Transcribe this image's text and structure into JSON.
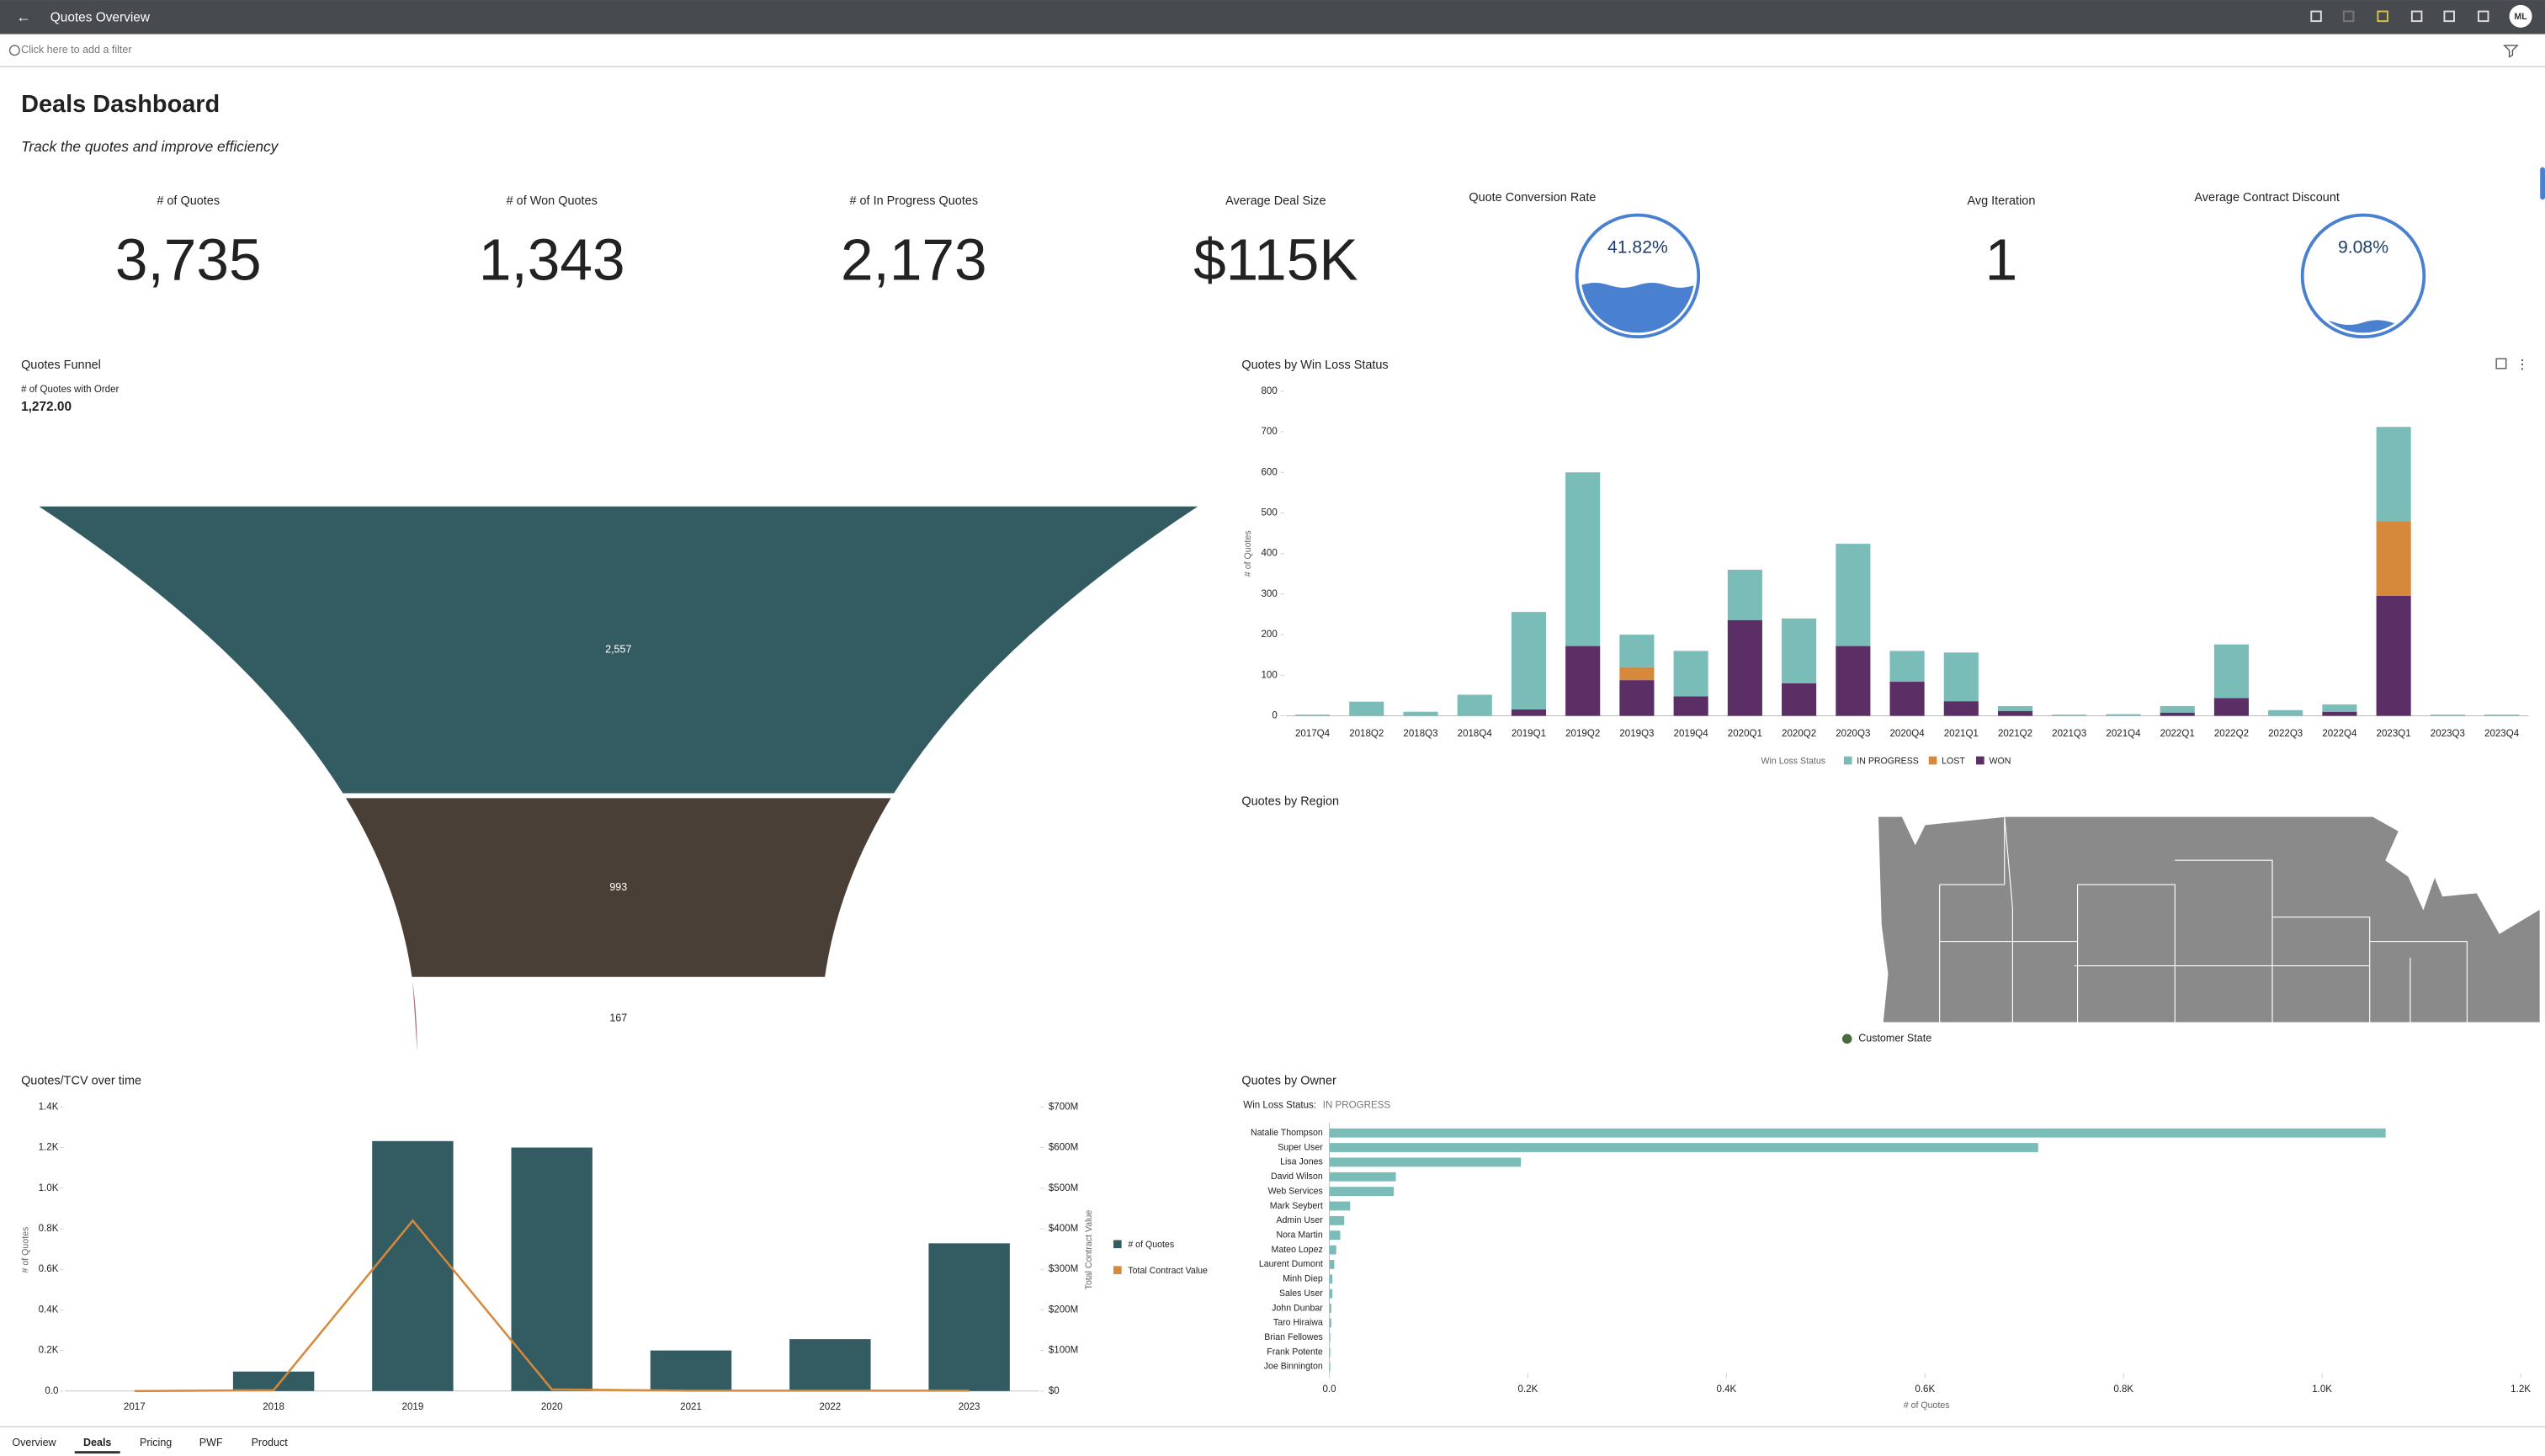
{
  "topbar": {
    "title": "Quotes Overview",
    "avatar": "ML"
  },
  "filter_bar": {
    "placeholder": "Click here to add a filter"
  },
  "dashboard": {
    "title": "Deals Dashboard",
    "subtitle": "Track the quotes and improve efficiency"
  },
  "kpis": [
    {
      "label": "# of Quotes",
      "value": "3,735"
    },
    {
      "label": "# of Won Quotes",
      "value": "1,343"
    },
    {
      "label": "# of In Progress Quotes",
      "value": "2,173"
    },
    {
      "label": "Average Deal Size",
      "value": "$115K"
    },
    {
      "label": "Avg Iteration",
      "value": "1"
    }
  ],
  "gauges": [
    {
      "label": "Quote Conversion Rate",
      "value": 41.82,
      "value_label": "41.82%",
      "color": "#4a80d0"
    },
    {
      "label": "Average Contract Discount",
      "value": 9.08,
      "value_label": "9.08%",
      "color": "#4a80d0"
    }
  ],
  "funnel": {
    "title": "Quotes Funnel",
    "measure_label": "# of Quotes with Order",
    "measure_value": "1,272.00",
    "values": [
      2557,
      993,
      167
    ],
    "value_labels": [
      "2,557",
      "993",
      "167"
    ],
    "colors": [
      "#335c62",
      "#4a3f37",
      "#a8707a"
    ]
  },
  "win_loss": {
    "type": "bar",
    "title": "Quotes by Win Loss Status",
    "y_label": "# of Quotes",
    "legend_title": "Win Loss Status",
    "categories": [
      "2017Q4",
      "2018Q2",
      "2018Q3",
      "2018Q4",
      "2019Q1",
      "2019Q2",
      "2019Q3",
      "2019Q4",
      "2020Q1",
      "2020Q2",
      "2020Q3",
      "2020Q4",
      "2021Q1",
      "2021Q2",
      "2021Q3",
      "2021Q4",
      "2022Q1",
      "2022Q2",
      "2022Q3",
      "2022Q4",
      "2023Q1",
      "2023Q3",
      "2023Q4"
    ],
    "series": [
      {
        "name": "WON",
        "color": "#5b2f66",
        "values": [
          0,
          0,
          0,
          0,
          16,
          172,
          88,
          48,
          236,
          80,
          172,
          84,
          36,
          12,
          0,
          0,
          8,
          44,
          0,
          10,
          296,
          0,
          0
        ]
      },
      {
        "name": "LOST",
        "color": "#d6893a",
        "values": [
          0,
          0,
          0,
          0,
          0,
          0,
          32,
          0,
          0,
          0,
          0,
          0,
          0,
          0,
          0,
          0,
          0,
          0,
          0,
          0,
          184,
          0,
          0
        ]
      },
      {
        "name": "IN PROGRESS",
        "color": "#79bcb8",
        "values": [
          3,
          35,
          10,
          52,
          240,
          428,
          80,
          112,
          124,
          160,
          252,
          76,
          120,
          12,
          3,
          4,
          16,
          132,
          14,
          18,
          232,
          3,
          3
        ]
      }
    ],
    "ylim": [
      0,
      800
    ],
    "yticks": [
      0,
      100,
      200,
      300,
      400,
      500,
      600,
      700,
      800
    ]
  },
  "region": {
    "title": "Quotes by Region",
    "legend": "Customer State"
  },
  "tcv": {
    "type": "combo",
    "title": "Quotes/TCV over time",
    "y_label": "# of Quotes",
    "y2_label": "Total Contract Value",
    "categories": [
      "2017",
      "2018",
      "2019",
      "2020",
      "2021",
      "2022",
      "2023"
    ],
    "series": [
      {
        "name": "# of Quotes",
        "type": "bar",
        "color": "#335c62",
        "values": [
          0,
          96,
          1232,
          1200,
          200,
          256,
          728
        ]
      },
      {
        "name": "Total Contract Value",
        "type": "line",
        "axis": "y2",
        "color": "#d6893a",
        "values": [
          0,
          2000000,
          420000000,
          4000000,
          1000000,
          1000000,
          1000000
        ]
      }
    ],
    "ylim": [
      0,
      1400
    ],
    "yticks": [
      {
        "value": 0,
        "label": "0.0"
      },
      {
        "value": 200,
        "label": "0.2K"
      },
      {
        "value": 400,
        "label": "0.4K"
      },
      {
        "value": 600,
        "label": "0.6K"
      },
      {
        "value": 800,
        "label": "0.8K"
      },
      {
        "value": 1000,
        "label": "1.0K"
      },
      {
        "value": 1200,
        "label": "1.2K"
      },
      {
        "value": 1400,
        "label": "1.4K"
      }
    ],
    "y2lim": [
      0,
      700000000
    ],
    "y2ticks": [
      {
        "value": 0,
        "label": "$0"
      },
      {
        "value": 100000000,
        "label": "$100M"
      },
      {
        "value": 200000000,
        "label": "$200M"
      },
      {
        "value": 300000000,
        "label": "$300M"
      },
      {
        "value": 400000000,
        "label": "$400M"
      },
      {
        "value": 500000000,
        "label": "$500M"
      },
      {
        "value": 600000000,
        "label": "$600M"
      },
      {
        "value": 700000000,
        "label": "$700M"
      }
    ]
  },
  "owners": {
    "type": "hbar",
    "title": "Quotes by Owner",
    "filter_label": "Win Loss Status:",
    "filter_value": "IN PROGRESS",
    "x_label": "# of Quotes",
    "color": "#79bcb8",
    "categories": [
      "Natalie Thompson",
      "Super User",
      "Lisa Jones",
      "David Wilson",
      "Web Services",
      "Mark Seybert",
      "Admin User",
      "Nora Martin",
      "Mateo Lopez",
      "Laurent Dumont",
      "Minh Diep",
      "Sales User",
      "John Dunbar",
      "Taro Hiraiwa",
      "Brian Fellowes",
      "Frank Potente",
      "Joe Binnington"
    ],
    "values": [
      1064,
      714,
      193,
      67,
      65,
      21,
      15,
      11,
      7,
      5,
      3,
      3,
      2,
      2,
      1,
      1,
      1
    ],
    "xlim": [
      0,
      1200
    ],
    "xticks": [
      {
        "value": 0,
        "label": "0.0"
      },
      {
        "value": 200,
        "label": "0.2K"
      },
      {
        "value": 400,
        "label": "0.4K"
      },
      {
        "value": 600,
        "label": "0.6K"
      },
      {
        "value": 800,
        "label": "0.8K"
      },
      {
        "value": 1000,
        "label": "1.0K"
      },
      {
        "value": 1200,
        "label": "1.2K"
      }
    ]
  },
  "tabs": {
    "items": [
      "Overview",
      "Deals",
      "Pricing",
      "PWF",
      "Product"
    ],
    "active": 1
  }
}
